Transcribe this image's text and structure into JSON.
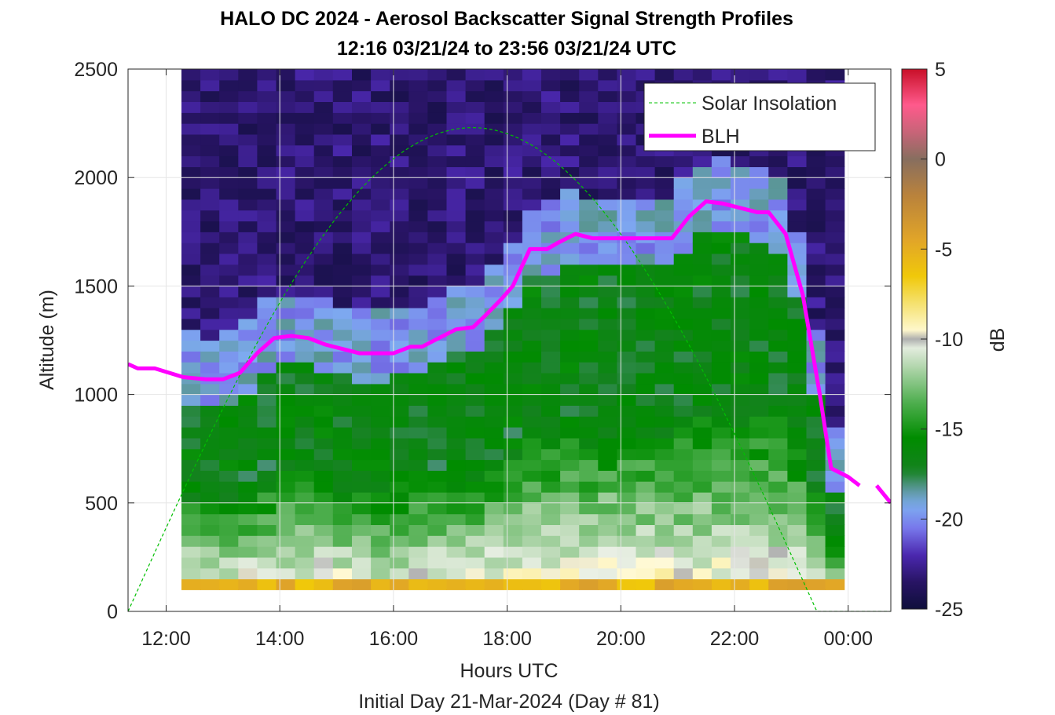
{
  "chart_data": {
    "type": "heatmap",
    "title": "HALO DC 2024 - Aerosol Backscatter Signal Strength Profiles",
    "subtitle": "12:16 03/21/24 to 23:56 03/21/24  UTC",
    "xlabel": "Hours UTC",
    "xlabel2": "Initial Day 21-Mar-2024 (Day # 81)",
    "ylabel": "Altitude (m)",
    "colorbar_label": "dB",
    "xlim_hours": [
      11.33,
      24.75
    ],
    "ylim": [
      0,
      2500
    ],
    "x_ticks": [
      12,
      14,
      16,
      18,
      20,
      22,
      24
    ],
    "x_tick_labels": [
      "12:00",
      "14:00",
      "16:00",
      "18:00",
      "20:00",
      "22:00",
      "00:00"
    ],
    "y_ticks": [
      0,
      500,
      1000,
      1500,
      2000,
      2500
    ],
    "y_tick_labels": [
      "0",
      "500",
      "1000",
      "1500",
      "2000",
      "2500"
    ],
    "colorbar_range": [
      -25,
      5
    ],
    "colorbar_ticks": [
      5,
      0,
      -5,
      -10,
      -15,
      -20,
      -25
    ],
    "colorbar_tick_labels": [
      "5",
      "0",
      "-5",
      "-10",
      "-15",
      "-20",
      "-25"
    ],
    "grid": true,
    "legend_position": "top-right",
    "legend": [
      {
        "label": "Solar Insolation",
        "color": "#00c000",
        "style": "dashed"
      },
      {
        "label": "BLH",
        "color": "#ff00ff",
        "style": "solid"
      }
    ],
    "heatmap": {
      "x_start_hours": 12.27,
      "x_end_hours": 23.93,
      "y_start": 100,
      "y_end": 2500,
      "bins_x": 35,
      "bins_y": 48,
      "first_bin_note": "near-surface layer ~100-150 m shows about -6 dB",
      "top_of_mixed_layer_dB": -21,
      "free_troposphere_dB": -23.5,
      "boundary_layer_dB": -16.5
    },
    "blh": {
      "name": "BLH",
      "x": [
        11.33,
        11.5,
        11.8,
        12.3,
        12.7,
        13.0,
        13.3,
        13.6,
        13.9,
        14.2,
        14.5,
        14.8,
        15.1,
        15.4,
        15.7,
        16.0,
        16.3,
        16.5,
        16.8,
        17.1,
        17.4,
        17.6,
        17.9,
        18.1,
        18.4,
        18.7,
        18.9,
        19.2,
        19.5,
        19.8,
        20.1,
        20.4,
        20.6,
        20.9,
        21.2,
        21.5,
        21.8,
        22.1,
        22.4,
        22.6,
        22.9,
        23.2,
        23.5,
        23.7,
        24.0,
        24.2
      ],
      "y": [
        1140,
        1120,
        1120,
        1080,
        1070,
        1070,
        1100,
        1190,
        1260,
        1270,
        1260,
        1230,
        1210,
        1190,
        1190,
        1190,
        1220,
        1220,
        1260,
        1300,
        1310,
        1360,
        1440,
        1500,
        1670,
        1670,
        1700,
        1740,
        1720,
        1720,
        1720,
        1720,
        1720,
        1720,
        1820,
        1890,
        1880,
        1860,
        1840,
        1840,
        1740,
        1460,
        1000,
        660,
        620,
        580
      ],
      "gap_after_hours": 24.2,
      "tail_x": [
        24.5,
        24.75
      ],
      "tail_y": [
        580,
        500
      ]
    },
    "solar_insolation": {
      "name": "Solar Insolation",
      "peak_hour": 17.3,
      "peak_altitude": 2230,
      "sunrise_hour": 11.33,
      "sunset_hour": 23.45,
      "baseline_altitude": 0
    }
  }
}
